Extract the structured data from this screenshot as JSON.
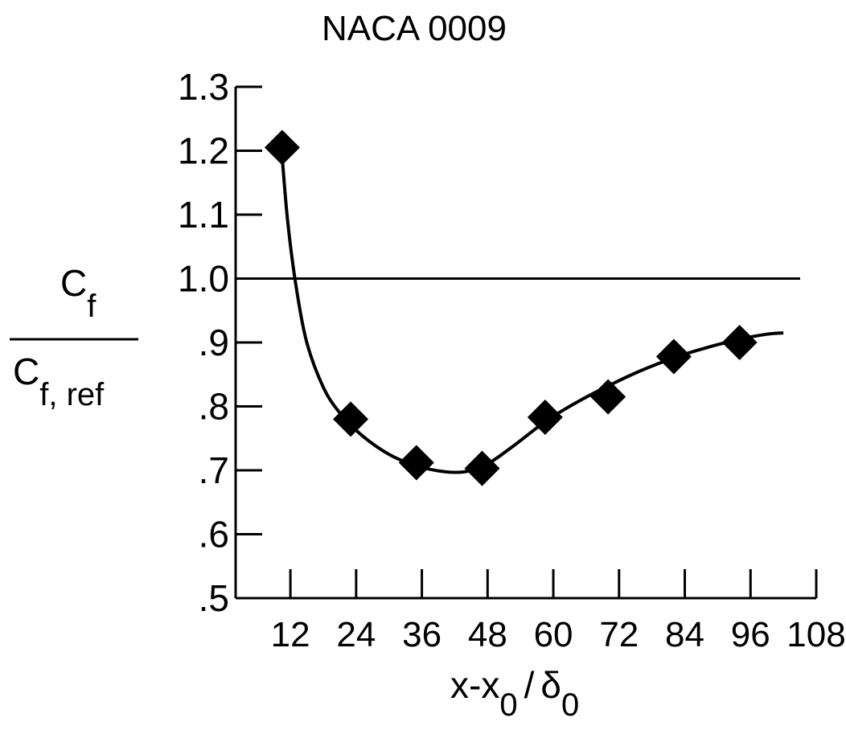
{
  "chart_data": {
    "type": "scatter",
    "title": "NACA 0009",
    "ylabel_numerator_main": "C",
    "ylabel_numerator_sub": "f",
    "ylabel_denominator_main": "C",
    "ylabel_denominator_sub": "f, ref",
    "xlabel_parts": [
      "x-x",
      "0",
      "/",
      "δ",
      "0"
    ],
    "x_ticks": [
      12,
      24,
      36,
      48,
      60,
      72,
      84,
      96,
      108
    ],
    "x_tick_labels": [
      "12",
      "24",
      "36",
      "48",
      "60",
      "72",
      "84",
      "96",
      "108"
    ],
    "y_ticks": [
      0.5,
      0.6,
      0.7,
      0.8,
      0.9,
      1.0,
      1.1,
      1.2,
      1.3
    ],
    "y_tick_labels": [
      ".5",
      ".6",
      ".7",
      ".8",
      ".9",
      "1.0",
      "1.1",
      "1.2",
      "1.3"
    ],
    "xlim": [
      2,
      108
    ],
    "ylim": [
      0.5,
      1.3
    ],
    "reference_line_y": 1.0,
    "marker": "filled-diamond",
    "grid": false,
    "series": [
      {
        "points": [
          {
            "x": 10.5,
            "y": 1.205
          },
          {
            "x": 23,
            "y": 0.78
          },
          {
            "x": 35,
            "y": 0.712
          },
          {
            "x": 47,
            "y": 0.703
          },
          {
            "x": 58.5,
            "y": 0.783
          },
          {
            "x": 70,
            "y": 0.815
          },
          {
            "x": 82,
            "y": 0.878
          },
          {
            "x": 94,
            "y": 0.9
          }
        ]
      }
    ],
    "fit_curve": [
      [
        10.5,
        1.19
      ],
      [
        11.5,
        1.09
      ],
      [
        13,
        0.99
      ],
      [
        15,
        0.9
      ],
      [
        18,
        0.83
      ],
      [
        21,
        0.79
      ],
      [
        25,
        0.755
      ],
      [
        30,
        0.725
      ],
      [
        35,
        0.707
      ],
      [
        40,
        0.698
      ],
      [
        44,
        0.698
      ],
      [
        48,
        0.71
      ],
      [
        53,
        0.74
      ],
      [
        58.5,
        0.776
      ],
      [
        64,
        0.805
      ],
      [
        70,
        0.832
      ],
      [
        76,
        0.856
      ],
      [
        82,
        0.876
      ],
      [
        88,
        0.892
      ],
      [
        94,
        0.905
      ],
      [
        99,
        0.913
      ],
      [
        102,
        0.915
      ]
    ]
  }
}
